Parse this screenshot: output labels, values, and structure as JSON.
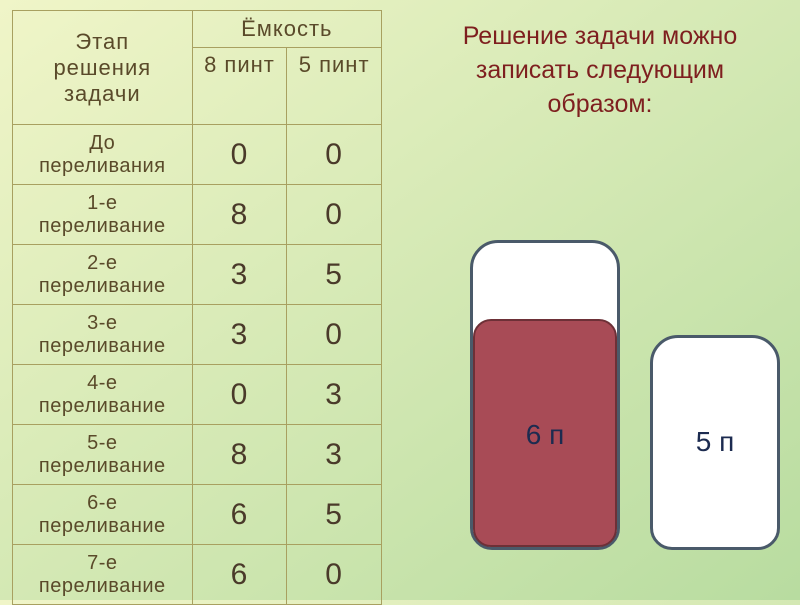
{
  "table": {
    "header_stage": "Этап\nрешения\nзадачи",
    "header_capacity": "Ёмкость",
    "header_8": "8 пинт",
    "header_5": "5 пинт",
    "rows": [
      {
        "stage": "До\nпереливания",
        "v8": "0",
        "v5": "0"
      },
      {
        "stage": "1-е\nпереливание",
        "v8": "8",
        "v5": "0"
      },
      {
        "stage": "2-е\nпереливание",
        "v8": "3",
        "v5": "5"
      },
      {
        "stage": "3-е\nпереливание",
        "v8": "3",
        "v5": "0"
      },
      {
        "stage": "4-е\nпереливание",
        "v8": "0",
        "v5": "3"
      },
      {
        "stage": "5-е\nпереливание",
        "v8": "8",
        "v5": "3"
      },
      {
        "stage": "6-е\nпереливание",
        "v8": "6",
        "v5": "5"
      },
      {
        "stage": "7-е\nпереливание",
        "v8": "6",
        "v5": "0"
      }
    ]
  },
  "heading": "Решение задачи можно записать следующим образом:",
  "vessels": {
    "v8": {
      "capacity": 8,
      "current": 6,
      "label": "6 п",
      "fill_color": "#a84b56",
      "border_color": "#4a5a6a",
      "bg_color": "#ffffff"
    },
    "v5": {
      "capacity": 5,
      "current": 0,
      "label": "5 п",
      "fill_color": "#a84b56",
      "border_color": "#4a5a6a",
      "bg_color": "#ffffff"
    }
  },
  "style": {
    "bg_gradient_from": "#f0f5c8",
    "bg_gradient_to": "#b8dca0",
    "table_border": "#a8a060",
    "table_text": "#5a4a2a",
    "heading_color": "#7e1f1f",
    "label_color": "#1c2b50",
    "num_fontsize": 30,
    "stage_fontsize": 20,
    "heading_fontsize": 25,
    "vessel_label_fontsize": 28
  }
}
